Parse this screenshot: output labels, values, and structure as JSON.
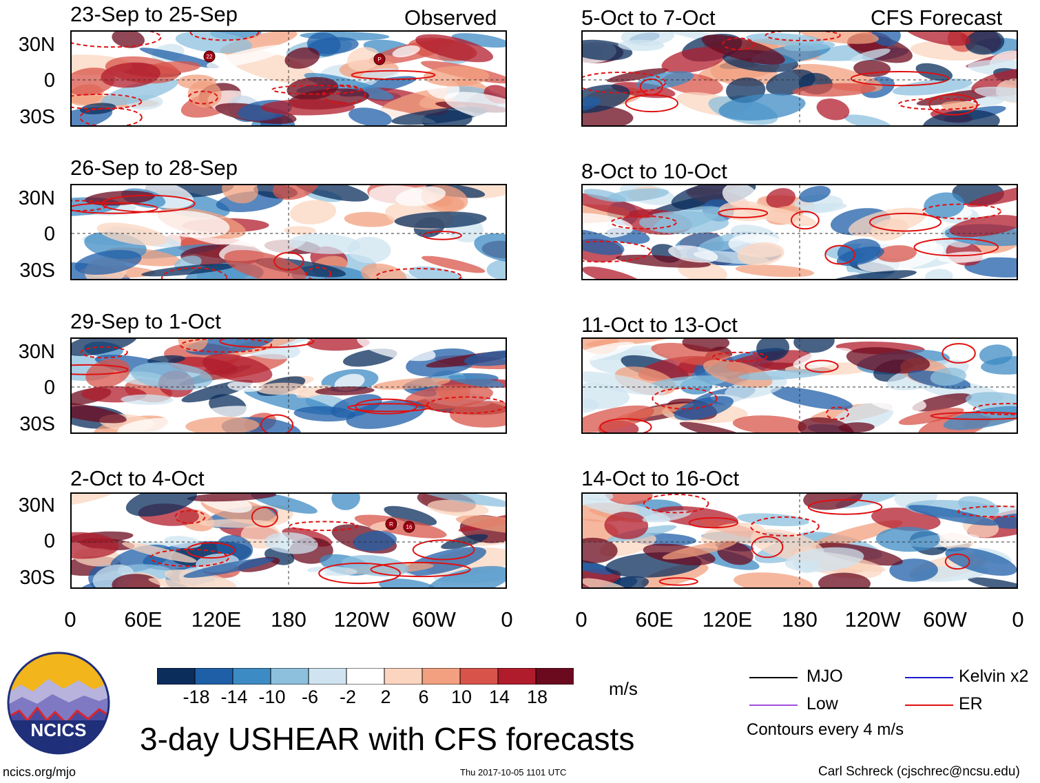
{
  "header": {
    "observed_label": "Observed",
    "forecast_label": "CFS Forecast"
  },
  "panels": {
    "observed": [
      {
        "title": "23-Sep to 25-Sep",
        "storms": [
          "22",
          "P"
        ]
      },
      {
        "title": "26-Sep to 28-Sep",
        "storms": []
      },
      {
        "title": "29-Sep to 1-Oct",
        "storms": []
      },
      {
        "title": "2-Oct to 4-Oct",
        "storms": [
          "R",
          "16"
        ]
      }
    ],
    "forecast": [
      {
        "title": "5-Oct to 7-Oct"
      },
      {
        "title": "8-Oct to 10-Oct"
      },
      {
        "title": "11-Oct to 13-Oct"
      },
      {
        "title": "14-Oct to 16-Oct"
      }
    ]
  },
  "axes": {
    "lat_labels": [
      "30N",
      "0",
      "30S"
    ],
    "lon_labels": [
      "0",
      "60E",
      "120E",
      "180",
      "120W",
      "60W",
      "0"
    ]
  },
  "colorbar": {
    "ticks": [
      "-18",
      "-14",
      "-10",
      "-6",
      "-2",
      "2",
      "6",
      "10",
      "14",
      "18"
    ],
    "colors": [
      "#0a2d5c",
      "#1f5fa8",
      "#3d8bc4",
      "#8cc0dd",
      "#cfe4f0",
      "#ffffff",
      "#fbd5c0",
      "#f2a07f",
      "#d8544a",
      "#b01c2c",
      "#6b0a1e"
    ],
    "units": "m/s"
  },
  "legend": {
    "items": [
      {
        "label": "MJO",
        "color": "#000000"
      },
      {
        "label": "Kelvin x2",
        "color": "#1a1acc"
      },
      {
        "label": "Low",
        "color": "#a04ee0"
      },
      {
        "label": "ER",
        "color": "#e01010"
      }
    ],
    "contour_note": "Contours every 4 m/s"
  },
  "footer": {
    "main_title": "3-day USHEAR with CFS forecasts",
    "logo_text": "NCICS",
    "url": "ncics.org/mjo",
    "timestamp": "Thu 2017-10-05 1101 UTC",
    "author": "Carl Schreck (cjschrec@ncsu.edu)"
  }
}
